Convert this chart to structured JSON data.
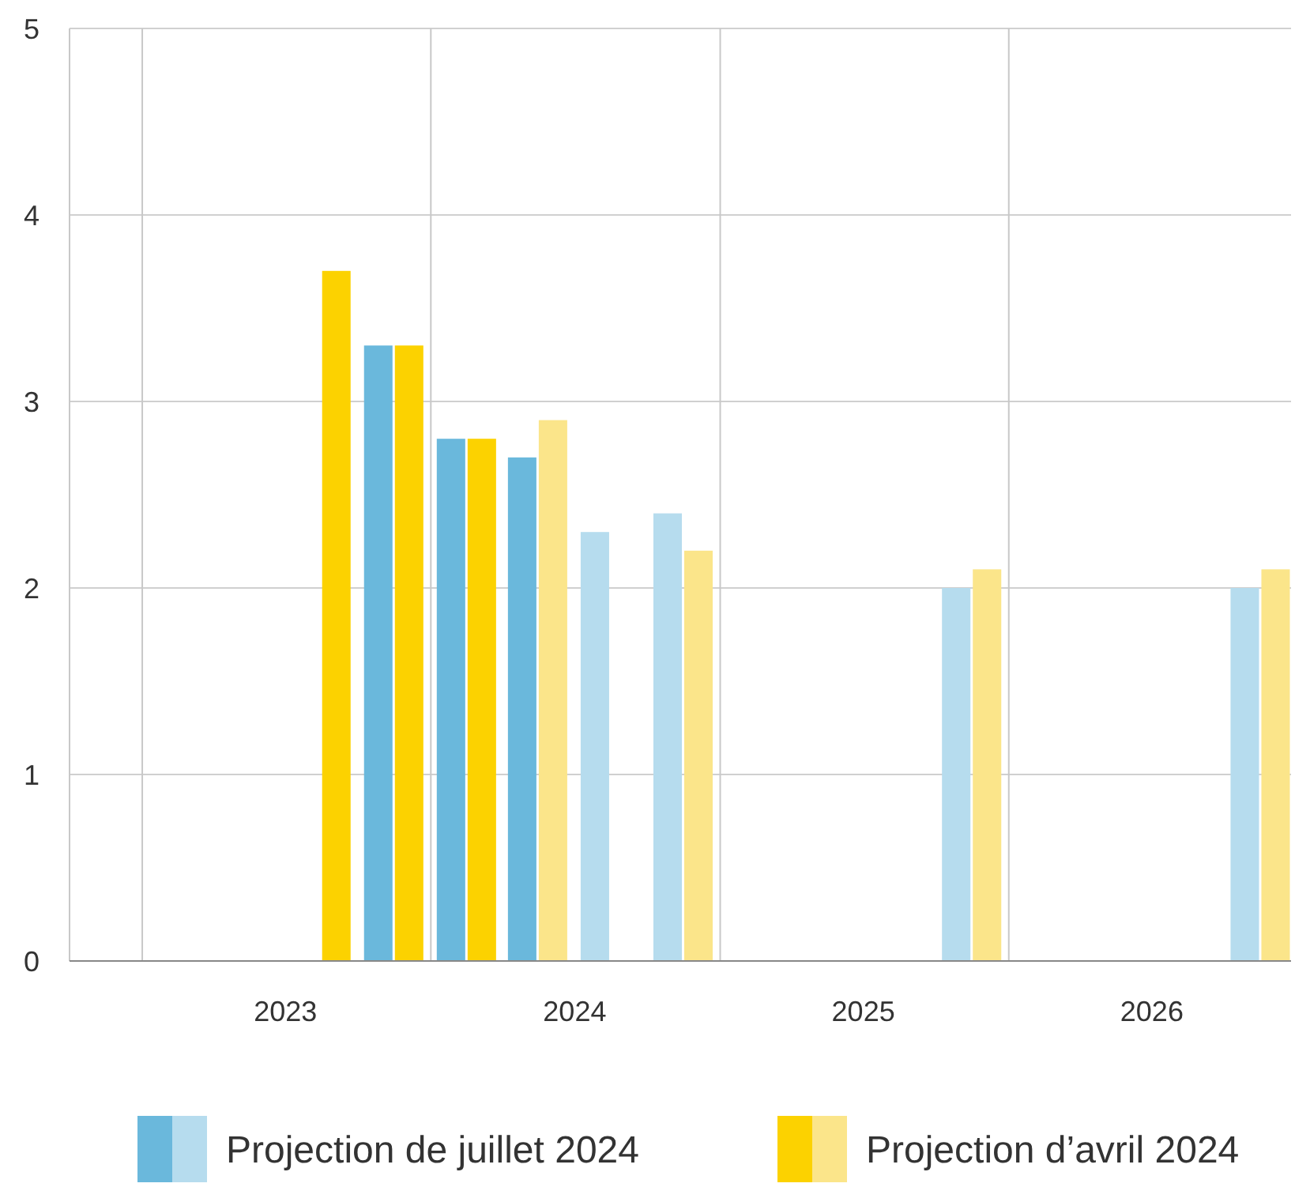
{
  "chart_data": {
    "type": "bar",
    "x": [
      "2023-08-15",
      "2023-11-15",
      "2024-02-15",
      "2024-05-15",
      "2024-08-15",
      "2024-11-15",
      "2025-11-15",
      "2026-11-15"
    ],
    "series": [
      {
        "name": "Projection de juillet 2024",
        "color": "#6ab8dc",
        "colors": [
          "#6ab8dc",
          "#6ab8dc",
          "#6ab8dc",
          "#6ab8dc",
          "#b6dcee",
          "#b6dcee",
          "#b6dcee",
          "#b6dcee"
        ],
        "values": [
          null,
          3.3,
          2.8,
          2.7,
          2.3,
          2.4,
          2.0,
          2.0
        ]
      },
      {
        "name": "Projection d’avril 2024",
        "color": "#fcd200",
        "colors": [
          "#fcd200",
          "#fcd200",
          "#fcd200",
          "#fbe58a",
          "#fbe58a",
          "#fbe58a",
          "#fbe58a",
          "#fbe58a"
        ],
        "values": [
          3.7,
          3.3,
          2.8,
          2.9,
          null,
          2.2,
          2.1,
          2.1
        ]
      }
    ],
    "xlim": [
      "2022-10-01",
      "2026-12-24"
    ],
    "xticks": [
      {
        "value": "2023-01-01",
        "label": null
      },
      {
        "value": "2023-07-01",
        "label": "2023"
      },
      {
        "value": "2024-01-01",
        "label": null
      },
      {
        "value": "2024-07-01",
        "label": "2024"
      },
      {
        "value": "2025-01-01",
        "label": null
      },
      {
        "value": "2025-07-01",
        "label": "2025"
      },
      {
        "value": "2026-01-01",
        "label": null
      },
      {
        "value": "2026-07-01",
        "label": "2026"
      }
    ],
    "ylim": [
      0,
      5
    ],
    "yticks": [
      0,
      1,
      2,
      3,
      4,
      5
    ],
    "grid": true,
    "legend": "bottom"
  }
}
